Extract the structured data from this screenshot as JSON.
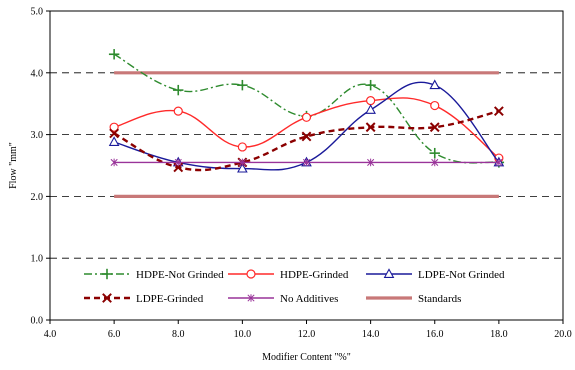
{
  "chart_data": {
    "type": "line",
    "title": "",
    "xlabel": "Modifier Content \"%\"",
    "ylabel": "Flow \"mm\"",
    "xlim": [
      4.0,
      20.0
    ],
    "ylim": [
      0.0,
      5.0
    ],
    "xticks": [
      4.0,
      6.0,
      8.0,
      10.0,
      12.0,
      14.0,
      16.0,
      18.0,
      20.0
    ],
    "xtick_labels": [
      "4.0",
      "6.0",
      "8.0",
      "10.0",
      "12.0",
      "14.0",
      "16.0",
      "18.0",
      "20.0"
    ],
    "yticks": [
      0.0,
      1.0,
      2.0,
      3.0,
      4.0,
      5.0
    ],
    "ytick_labels": [
      "0.0",
      "1.0",
      "2.0",
      "3.0",
      "4.0",
      "5.0"
    ],
    "grid": "horizontal dashed",
    "legend_placement": "inside-bottom",
    "x": [
      6,
      8,
      10,
      12,
      14,
      16,
      18
    ],
    "series": [
      {
        "name": "HDPE-Not Grinded",
        "values": [
          4.3,
          3.72,
          3.8,
          3.3,
          3.8,
          2.7,
          2.55
        ],
        "color": "#2e8b2e",
        "dash": "dashdot",
        "marker": "plus",
        "smooth": true
      },
      {
        "name": "HDPE-Grinded",
        "values": [
          3.12,
          3.38,
          2.8,
          3.28,
          3.55,
          3.47,
          2.62
        ],
        "color": "#ff2a2a",
        "dash": "solid",
        "marker": "circle",
        "smooth": true
      },
      {
        "name": "LDPE-Not Grinded",
        "values": [
          2.88,
          2.55,
          2.45,
          2.55,
          3.4,
          3.8,
          2.55
        ],
        "color": "#1a1a9a",
        "dash": "solid",
        "marker": "triangle",
        "smooth": true
      },
      {
        "name": "LDPE-Grinded",
        "values": [
          3.02,
          2.47,
          2.55,
          2.97,
          3.12,
          3.12,
          3.38
        ],
        "color": "#8b0000",
        "dash": "dashed",
        "marker": "x",
        "smooth": true
      },
      {
        "name": "No Additives",
        "values": [
          2.55,
          2.55,
          2.55,
          2.55,
          2.55,
          2.55,
          2.55
        ],
        "color": "#993399",
        "dash": "solid",
        "marker": "star",
        "smooth": false
      }
    ],
    "standards": {
      "name": "Standards",
      "color": "#c87878",
      "values": [
        2.0,
        4.0
      ],
      "x_range": [
        6,
        18
      ]
    }
  }
}
